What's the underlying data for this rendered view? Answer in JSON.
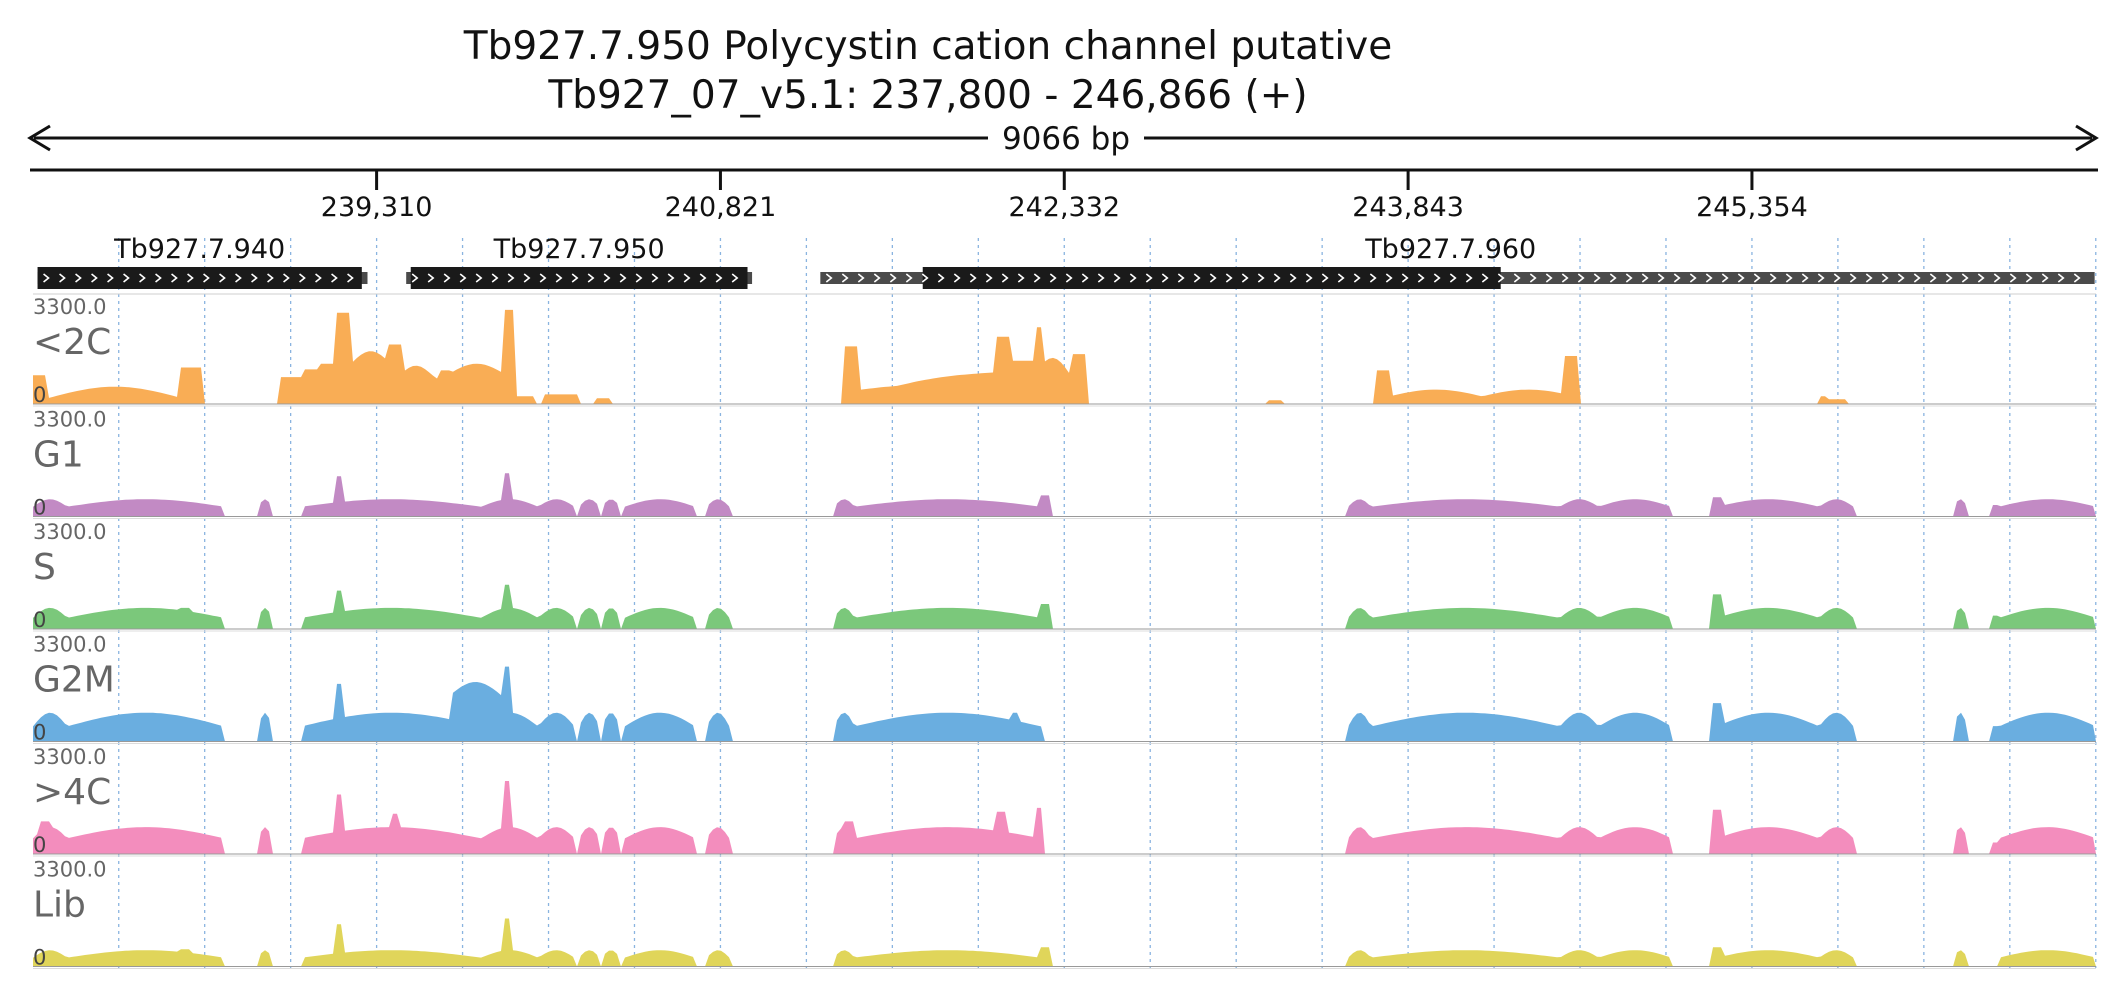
{
  "header": {
    "title_line1": "Tb927.7.950  Polycystin cation channel  putative",
    "title_line2": "Tb927_07_v5.1: 237,800 - 246,866 (+)",
    "span_label": "9066 bp"
  },
  "region": {
    "start": 237800,
    "end": 246866
  },
  "axis": {
    "ticks": [
      {
        "pos": 239310,
        "label": "239,310"
      },
      {
        "pos": 240821,
        "label": "240,821"
      },
      {
        "pos": 242332,
        "label": "242,332"
      },
      {
        "pos": 243843,
        "label": "243,843"
      },
      {
        "pos": 245354,
        "label": "245,354"
      }
    ]
  },
  "genes": [
    {
      "name": "Tb927.7.940",
      "start": 237820,
      "end": 239270,
      "cds_start": 237820,
      "cds_end": 239245
    },
    {
      "name": "Tb927.7.950",
      "start": 239440,
      "end": 240960,
      "cds_start": 239460,
      "cds_end": 240940
    },
    {
      "name": "Tb927.7.960",
      "start": 241260,
      "end": 246860,
      "cds_start": 241710,
      "cds_end": 244250
    }
  ],
  "tracks": [
    {
      "name": "<2C",
      "max_label": "3300.0",
      "min_label": "0",
      "color": "#f9ad55",
      "profile": "a2c"
    },
    {
      "name": "G1",
      "max_label": "3300.0",
      "min_label": "0",
      "color": "#c28ac4",
      "profile": "g1"
    },
    {
      "name": "S",
      "max_label": "3300.0",
      "min_label": "0",
      "color": "#7bc87b",
      "profile": "s"
    },
    {
      "name": "G2M",
      "max_label": "3300.0",
      "min_label": "0",
      "color": "#6aaee0",
      "profile": "g2m"
    },
    {
      "name": ">4C",
      "max_label": "3300.0",
      "min_label": "0",
      "color": "#f38dbd",
      "profile": "g4c"
    },
    {
      "name": "Lib",
      "max_label": "3300.0",
      "min_label": "0",
      "color": "#e0d55a",
      "profile": "lib"
    }
  ],
  "colors": {
    "gene_block": "#1a1a1a",
    "utr_block": "#4a4a4a",
    "grid_line": "#8ab4e0",
    "text": "#111111"
  }
}
